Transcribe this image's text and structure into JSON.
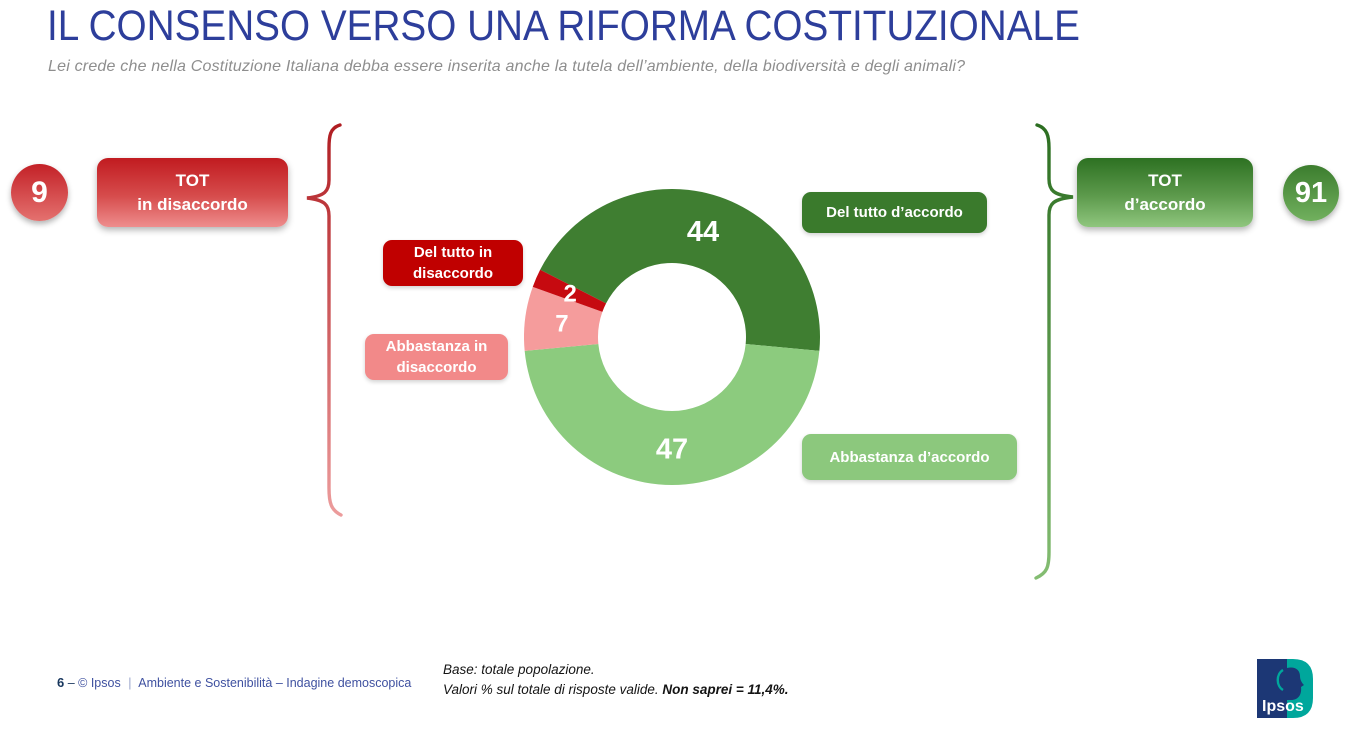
{
  "slide": {
    "title": "IL CONSENSO VERSO UNA RIFORMA COSTITUZIONALE",
    "subtitle": "Lei crede che nella Costituzione Italiana debba essere inserita anche la tutela dell’ambiente, della biodiversità e degli animali?"
  },
  "summary_left": {
    "value": "9",
    "line1": "TOT",
    "line2": "in disaccordo"
  },
  "summary_right": {
    "value": "91",
    "line1": "TOT",
    "line2": "d’accordo"
  },
  "chart_data": {
    "type": "pie",
    "subtype": "donut",
    "start_angle_clockwise_from_top_deg": 297,
    "inner_radius_ratio": 0.5,
    "slices": [
      {
        "label": "Del tutto d’accordo",
        "value": 44,
        "color": "#3f7e31"
      },
      {
        "label": "Abbastanza d’accordo",
        "value": 47,
        "color": "#8ccb7e"
      },
      {
        "label": "Abbastanza in disaccordo",
        "value": 7,
        "color": "#f59c9c"
      },
      {
        "label": "Del tutto in disaccordo",
        "value": 2,
        "color": "#c60a10"
      }
    ],
    "aggregates": [
      {
        "label": "TOT in disaccordo",
        "value": 9
      },
      {
        "label": "TOT d’accordo",
        "value": 91
      }
    ],
    "value_labels": [
      "44",
      "47",
      "7",
      "2"
    ],
    "legend_position": "callouts-around-donut"
  },
  "note": {
    "line1": "Base: totale popolazione.",
    "line2_regular": "Valori % sul totale di risposte valide. ",
    "line2_bold": "Non saprei = 11,4%."
  },
  "footer": {
    "page_number": "6",
    "dash": "–",
    "copyright": "© Ipsos",
    "separator": "|",
    "department": "Ambiente e Sostenibilità – Indagine demoscopica"
  },
  "logo": {
    "wordmark": "Ipsos"
  },
  "colors": {
    "title_blue": "#2d3e9b",
    "subtitle_gray": "#8e8e8e",
    "footer_blue": "#3f51a0",
    "dark_green": "#3f7e31",
    "light_green": "#8ccb7e",
    "pink": "#f59c9c",
    "dark_red": "#c60a10",
    "callout_dark_red": "#c00000",
    "callout_pink": "#f28989",
    "callout_dark_green": "#3a7a2c",
    "callout_light_green": "#8cc87d",
    "logo_navy": "#1c3775",
    "logo_teal": "#00a79c"
  }
}
